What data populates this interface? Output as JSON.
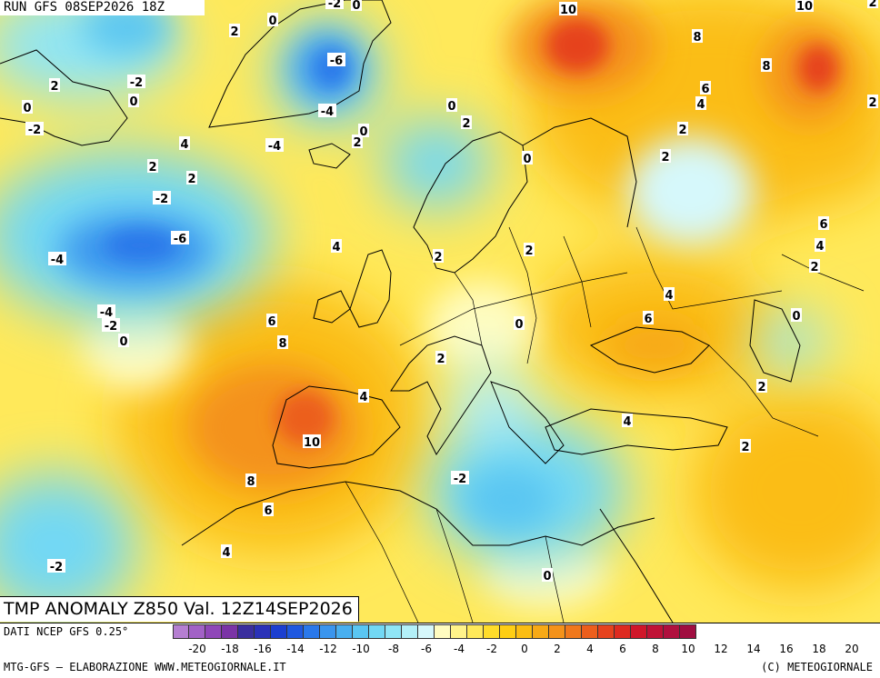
{
  "header": {
    "run": "RUN GFS 08SEP2026 18Z"
  },
  "map": {
    "title": "TMP ANOMALY Z850 Val. 12Z14SEP2026",
    "contour_labels": [
      "0",
      "-2",
      "0",
      "2",
      "10",
      "10",
      "-6",
      "-4",
      "8",
      "8",
      "6",
      "4",
      "2",
      "2",
      "-2",
      "0",
      "0",
      "-2",
      "2",
      "-4",
      "2",
      "0",
      "2",
      "4",
      "2",
      "0",
      "2",
      "0",
      "-2",
      "-6",
      "-4",
      "4",
      "2",
      "2",
      "-4",
      "-2",
      "0",
      "6",
      "8",
      "4",
      "10",
      "8",
      "6",
      "2",
      "2",
      "-2",
      "2",
      "4",
      "0",
      "4",
      "6",
      "6",
      "4",
      "2",
      "4",
      "0",
      "2",
      "2",
      "-2",
      "0"
    ]
  },
  "footer": {
    "data_source": "DATI NCEP GFS 0.25°",
    "credit": "MTG-GFS – ELABORAZIONE WWW.METEOGIORNALE.IT",
    "copyright": "(C) METEOGIORNALE"
  },
  "legend": {
    "colors": [
      "#b57fd1",
      "#a262c6",
      "#8f47b8",
      "#7b34a6",
      "#3b2f9e",
      "#2b32b8",
      "#1c3fd0",
      "#1f58e0",
      "#2a78ea",
      "#3a95ee",
      "#48aff0",
      "#5ac6f2",
      "#72d8f4",
      "#8fe5f6",
      "#b3f0f8",
      "#d6f8fb",
      "#fffcc0",
      "#fff38a",
      "#ffe95a",
      "#ffdc2a",
      "#fece14",
      "#fbbd12",
      "#f7a916",
      "#f4921a",
      "#f0781c",
      "#ec5e1c",
      "#e6421e",
      "#de2a20",
      "#d0172a",
      "#c01236",
      "#b0103e",
      "#a00e40"
    ],
    "tick_labels": [
      "-20",
      "-18",
      "-16",
      "-14",
      "-12",
      "-10",
      "-8",
      "-6",
      "-4",
      "-2",
      "0",
      "2",
      "4",
      "6",
      "8",
      "10",
      "12",
      "14",
      "16",
      "18",
      "20"
    ],
    "range": [
      -20,
      20
    ]
  }
}
